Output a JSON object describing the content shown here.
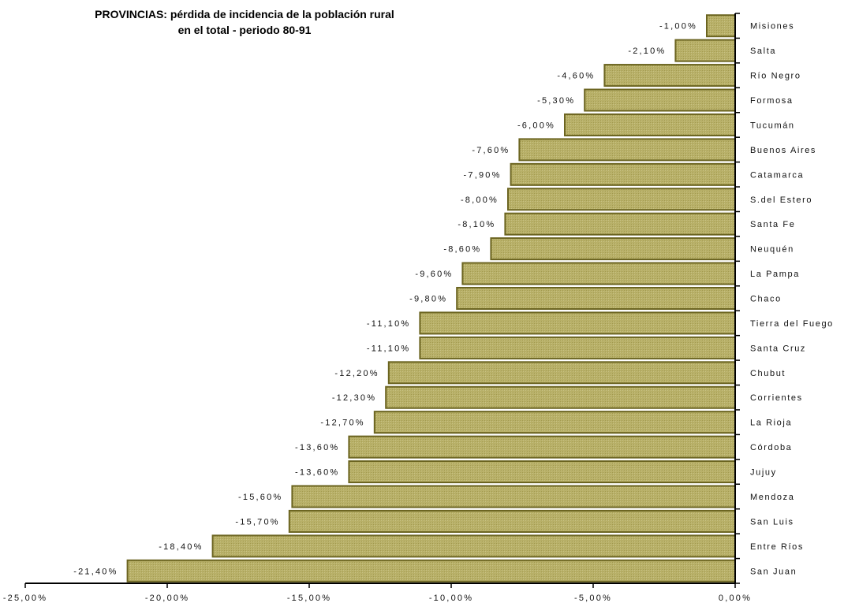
{
  "chart_data": {
    "type": "bar",
    "orientation": "horizontal",
    "title": "PROVINCIAS: pérdida de incidencia de la población rural",
    "subtitle": "en el total - periodo 80-91",
    "xlabel": "",
    "ylabel": "",
    "xlim": [
      -25,
      0
    ],
    "x_ticks": [
      -25,
      -20,
      -15,
      -10,
      -5,
      0
    ],
    "x_tick_labels": [
      "-25,00%",
      "-20,00%",
      "-15,00%",
      "-10,00%",
      "-5,00%",
      "0,00%"
    ],
    "grid": false,
    "legend": "none",
    "bar_color": "#b5ad63",
    "bar_edge_color": "#6b6420",
    "categories": [
      "Misiones",
      "Salta",
      "Río Negro",
      "Formosa",
      "Tucumán",
      "Buenos Aires",
      "Catamarca",
      "S.del Estero",
      "Santa Fe",
      "Neuquén",
      "La Pampa",
      "Chaco",
      "Tierra del Fuego",
      "Santa Cruz",
      "Chubut",
      "Corrientes",
      "La Rioja",
      "Córdoba",
      "Jujuy",
      "Mendoza",
      "San Luis",
      "Entre Ríos",
      "San Juan"
    ],
    "values": [
      -1.0,
      -2.1,
      -4.6,
      -5.3,
      -6.0,
      -7.6,
      -7.9,
      -8.0,
      -8.1,
      -8.6,
      -9.6,
      -9.8,
      -11.1,
      -11.1,
      -12.2,
      -12.3,
      -12.7,
      -13.6,
      -13.6,
      -15.6,
      -15.7,
      -18.4,
      -21.4
    ],
    "data_labels": [
      "-1,00%",
      "-2,10%",
      "-4,60%",
      "-5,30%",
      "-6,00%",
      "-7,60%",
      "-7,90%",
      "-8,00%",
      "-8,10%",
      "-8,60%",
      "-9,60%",
      "-9,80%",
      "-11,10%",
      "-11,10%",
      "-12,20%",
      "-12,30%",
      "-12,70%",
      "-13,60%",
      "-13,60%",
      "-15,60%",
      "-15,70%",
      "-18,40%",
      "-21,40%"
    ]
  }
}
